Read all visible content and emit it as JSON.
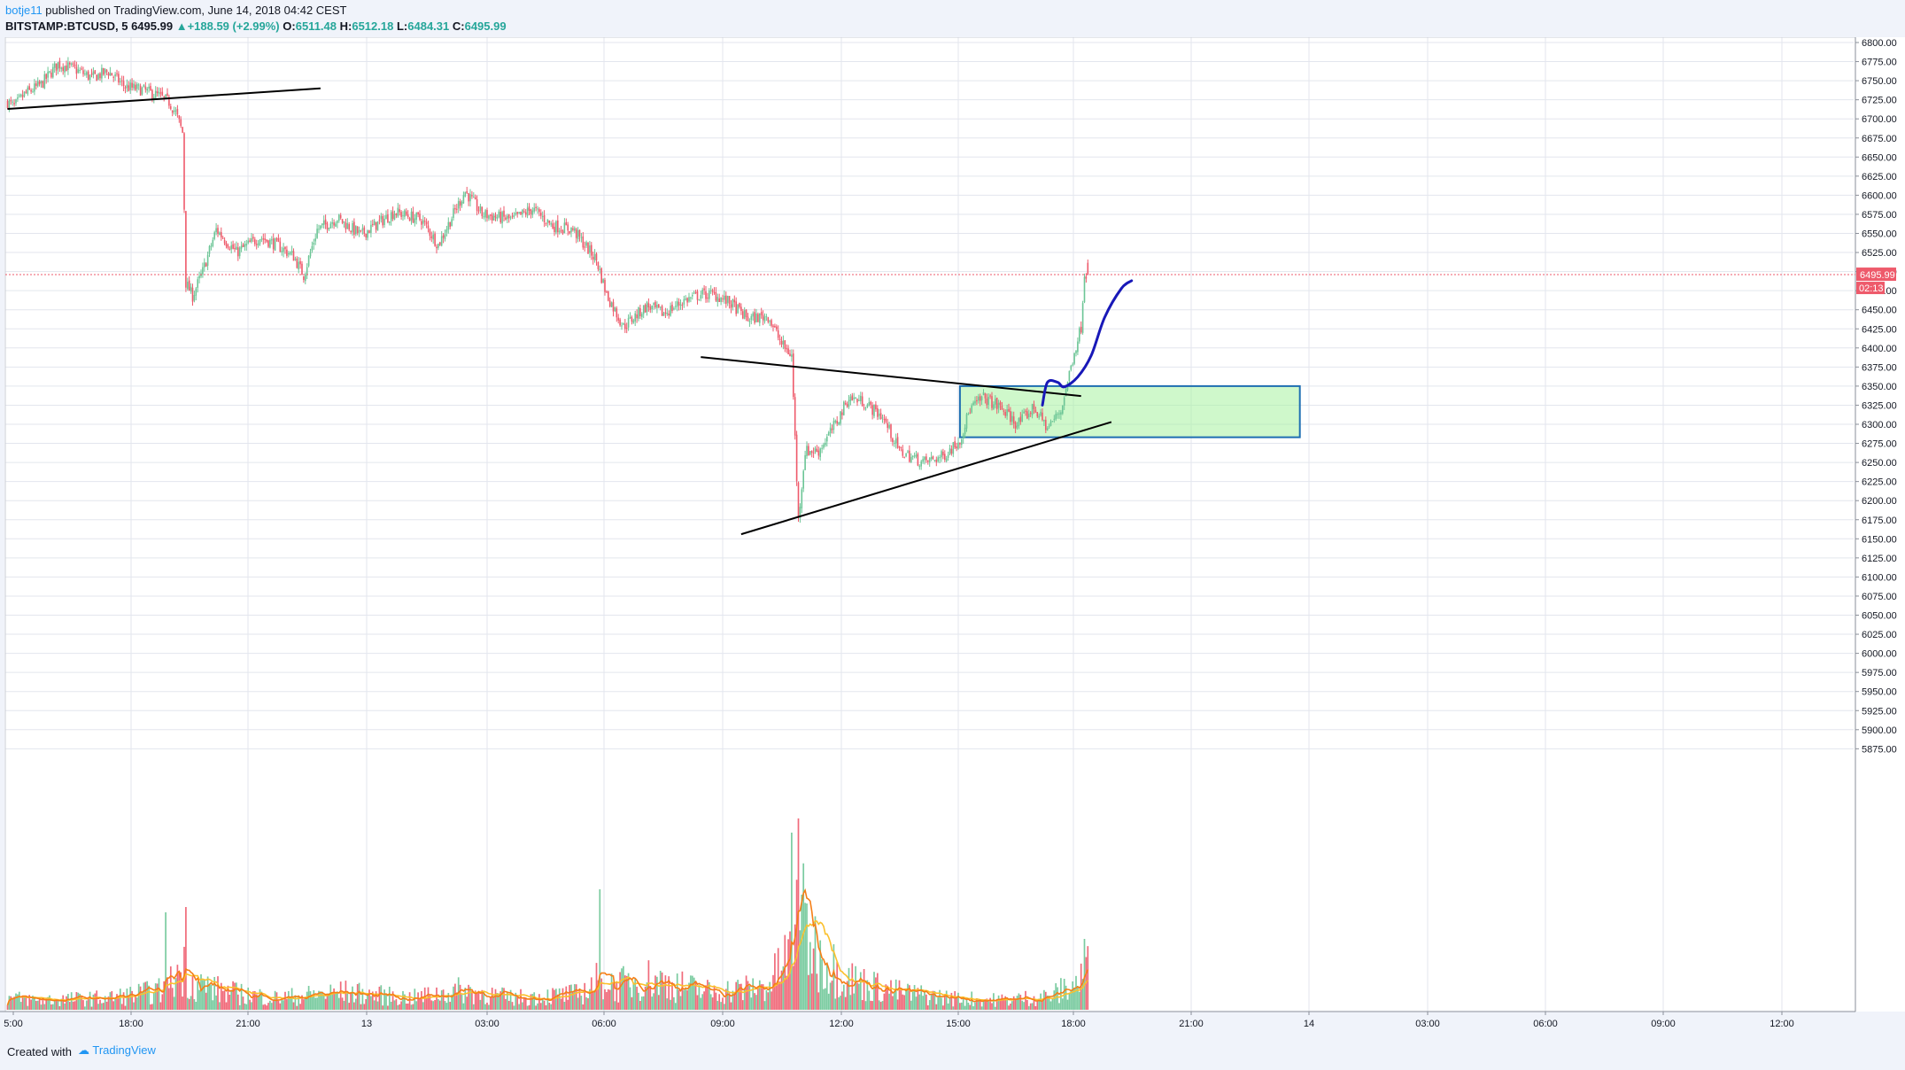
{
  "header": {
    "author": "botje11",
    "published": " published on TradingView.com, June 14, 2018 04:42 CEST",
    "symbol": "BITSTAMP:BTCUSD, 5",
    "last": "6495.99",
    "change": "+188.59 (+2.99%)",
    "o_label": "O:",
    "o": "6511.48",
    "h_label": "H:",
    "h": "6512.18",
    "l_label": "L:",
    "l": "6484.31",
    "c_label": "C:",
    "c": "6495.99"
  },
  "footer": {
    "created": "Created with",
    "brand": "TradingView"
  },
  "price_tags": {
    "last": "6495.99",
    "countdown": "02:13"
  },
  "colors": {
    "up": "#6cc596",
    "down": "#ee5a6b",
    "ma_orange": "#f57f17",
    "ma_yellow": "#fbc02d",
    "grid": "#e3e6ee",
    "zone_fill": "#a8f2a0",
    "zone_stroke": "#1f6fb2",
    "trendline": "#000000",
    "projection": "#1818b8",
    "last_price_line": "#ee5a6b"
  },
  "chart_data": {
    "type": "candlestick",
    "symbol": "BITSTAMP:BTCUSD",
    "interval": "5",
    "ylim": [
      5855,
      6805
    ],
    "y_ticks": [
      6800,
      6775,
      6750,
      6725,
      6700,
      6675,
      6650,
      6625,
      6600,
      6575,
      6550,
      6525,
      6500,
      6475,
      6450,
      6425,
      6400,
      6375,
      6350,
      6325,
      6300,
      6275,
      6250,
      6225,
      6200,
      6175,
      6150,
      6125,
      6100,
      6075,
      6050,
      6025,
      6000,
      5975,
      5950,
      5925,
      5900,
      5875
    ],
    "x_ticks": [
      "5:00",
      "18:00",
      "21:00",
      "13",
      "03:00",
      "06:00",
      "09:00",
      "12:00",
      "15:00",
      "18:00",
      "21:00",
      "14",
      "03:00",
      "06:00",
      "09:00",
      "12:00"
    ],
    "anchors": [
      [
        0,
        6722
      ],
      [
        4,
        6716
      ],
      [
        10,
        6732
      ],
      [
        20,
        6745
      ],
      [
        30,
        6772
      ],
      [
        40,
        6765
      ],
      [
        50,
        6754
      ],
      [
        60,
        6762
      ],
      [
        70,
        6742
      ],
      [
        80,
        6738
      ],
      [
        90,
        6730
      ],
      [
        96,
        6722
      ],
      [
        100,
        6708
      ],
      [
        104,
        6682
      ],
      [
        106,
        6485
      ],
      [
        110,
        6468
      ],
      [
        116,
        6500
      ],
      [
        124,
        6555
      ],
      [
        136,
        6525
      ],
      [
        150,
        6545
      ],
      [
        160,
        6535
      ],
      [
        170,
        6520
      ],
      [
        176,
        6495
      ],
      [
        184,
        6555
      ],
      [
        196,
        6570
      ],
      [
        210,
        6548
      ],
      [
        230,
        6578
      ],
      [
        246,
        6568
      ],
      [
        256,
        6535
      ],
      [
        266,
        6580
      ],
      [
        272,
        6605
      ],
      [
        282,
        6575
      ],
      [
        300,
        6568
      ],
      [
        312,
        6582
      ],
      [
        324,
        6560
      ],
      [
        336,
        6555
      ],
      [
        350,
        6515
      ],
      [
        356,
        6470
      ],
      [
        366,
        6428
      ],
      [
        380,
        6455
      ],
      [
        390,
        6445
      ],
      [
        402,
        6462
      ],
      [
        412,
        6470
      ],
      [
        420,
        6470
      ],
      [
        430,
        6458
      ],
      [
        440,
        6438
      ],
      [
        452,
        6442
      ],
      [
        460,
        6405
      ],
      [
        466,
        6390
      ],
      [
        470,
        6175
      ],
      [
        474,
        6265
      ],
      [
        482,
        6265
      ],
      [
        492,
        6300
      ],
      [
        500,
        6335
      ],
      [
        508,
        6330
      ],
      [
        520,
        6310
      ],
      [
        530,
        6265
      ],
      [
        544,
        6250
      ],
      [
        556,
        6258
      ],
      [
        566,
        6280
      ],
      [
        572,
        6320
      ],
      [
        580,
        6335
      ],
      [
        590,
        6322
      ],
      [
        600,
        6300
      ],
      [
        610,
        6322
      ],
      [
        618,
        6295
      ],
      [
        626,
        6318
      ],
      [
        634,
        6395
      ],
      [
        638,
        6428
      ],
      [
        640,
        6500
      ],
      [
        642,
        6496
      ]
    ],
    "last_index": 642,
    "volume_profile": [
      [
        0,
        6
      ],
      [
        20,
        5
      ],
      [
        60,
        6
      ],
      [
        94,
        10
      ],
      [
        104,
        22
      ],
      [
        110,
        14
      ],
      [
        130,
        9
      ],
      [
        160,
        6
      ],
      [
        200,
        9
      ],
      [
        240,
        6
      ],
      [
        270,
        10
      ],
      [
        300,
        6
      ],
      [
        340,
        8
      ],
      [
        354,
        17
      ],
      [
        360,
        12
      ],
      [
        380,
        16
      ],
      [
        400,
        12
      ],
      [
        420,
        9
      ],
      [
        452,
        12
      ],
      [
        466,
        30
      ],
      [
        470,
        55
      ],
      [
        474,
        40
      ],
      [
        482,
        28
      ],
      [
        496,
        18
      ],
      [
        506,
        14
      ],
      [
        530,
        9
      ],
      [
        560,
        6
      ],
      [
        590,
        5
      ],
      [
        620,
        7
      ],
      [
        636,
        14
      ],
      [
        642,
        20
      ]
    ],
    "volume_spikes": [
      [
        94,
        55
      ],
      [
        106,
        58
      ],
      [
        352,
        68
      ],
      [
        466,
        100
      ],
      [
        470,
        108
      ],
      [
        472,
        65
      ],
      [
        475,
        60
      ],
      [
        640,
        40
      ]
    ],
    "drawings": {
      "trendlines": [
        {
          "from": [
            0,
            6713
          ],
          "to": [
            186,
            6740
          ]
        },
        {
          "from": [
            412,
            6388
          ],
          "to": [
            638,
            6337
          ]
        },
        {
          "from": [
            436,
            6156
          ],
          "to": [
            656,
            6303
          ]
        }
      ],
      "zone": {
        "from_index": 566,
        "to_index": 768,
        "top": 6350,
        "bottom": 6283
      },
      "projection": [
        [
          615,
          6325
        ],
        [
          618,
          6355
        ],
        [
          624,
          6355
        ],
        [
          628,
          6349
        ],
        [
          636,
          6362
        ],
        [
          644,
          6390
        ],
        [
          652,
          6440
        ],
        [
          662,
          6478
        ],
        [
          668,
          6488
        ]
      ]
    }
  }
}
